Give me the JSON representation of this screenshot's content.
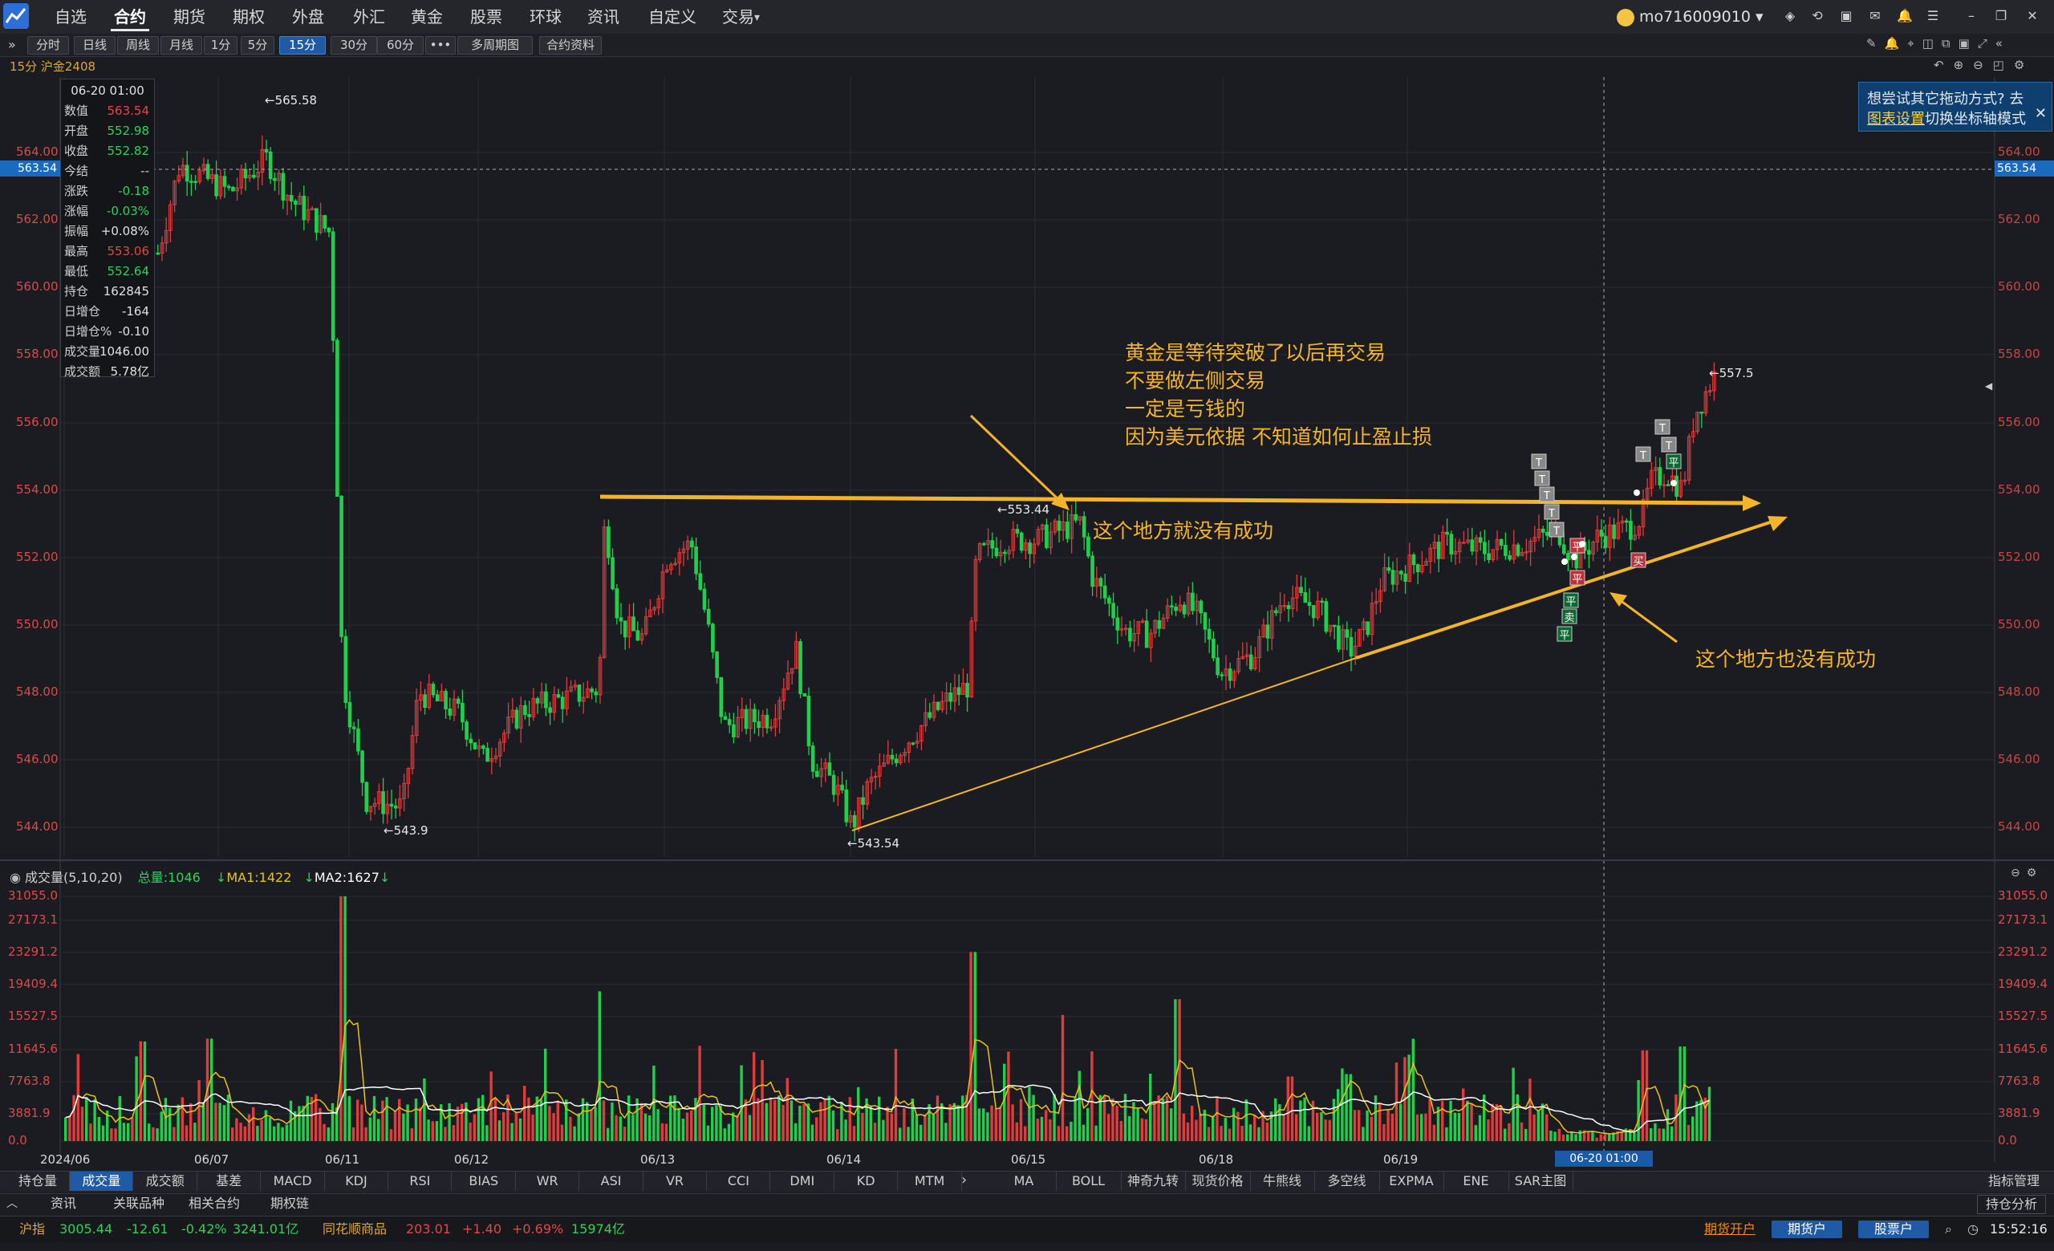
{
  "menu": {
    "items": [
      "自选",
      "合约",
      "期货",
      "期权",
      "外盘",
      "外汇",
      "黄金",
      "股票",
      "环球",
      "资讯",
      "自定义",
      "交易"
    ],
    "active_index": 1,
    "user": "mo716009010"
  },
  "periods": {
    "items": [
      "分时",
      "日线",
      "周线",
      "月线",
      "1分",
      "5分",
      "15分",
      "30分",
      "60分",
      "•••",
      "多周期图",
      "合约资料"
    ],
    "selected_index": 6
  },
  "subtitle": "15分 沪金2408",
  "price_axis": {
    "labels": [
      "564.00",
      "562.00",
      "560.00",
      "558.00",
      "556.00",
      "554.00",
      "552.00",
      "550.00",
      "548.00",
      "546.00",
      "544.00"
    ],
    "current": "563.54"
  },
  "date_axis": [
    "2024/06",
    "06/07",
    "06/11",
    "06/12",
    "06/13",
    "06/14",
    "06/15",
    "06/18",
    "06/19"
  ],
  "cursor_date": "06-20 01:00",
  "markers": {
    "high": "←565.58",
    "low1": "←543.9",
    "low2": "←543.54",
    "mid": "←553.44",
    "last": "←557.5"
  },
  "info_panel": {
    "time": "06-20 01:00",
    "rows": [
      {
        "k": "数值",
        "v": "563.54",
        "c": "#e04848"
      },
      {
        "k": "开盘",
        "v": "552.98",
        "c": "#2fd15a"
      },
      {
        "k": "收盘",
        "v": "552.82",
        "c": "#2fd15a"
      },
      {
        "k": "今结",
        "v": "--",
        "c": "#c8c8c8"
      },
      {
        "k": "涨跌",
        "v": "-0.18",
        "c": "#2fd15a"
      },
      {
        "k": "涨幅",
        "v": "-0.03%",
        "c": "#2fd15a"
      },
      {
        "k": "振幅",
        "v": "+0.08%",
        "c": "#e0e0e0"
      },
      {
        "k": "最高",
        "v": "553.06",
        "c": "#e04848"
      },
      {
        "k": "最低",
        "v": "552.64",
        "c": "#2fd15a"
      },
      {
        "k": "持仓",
        "v": "162845",
        "c": "#e0e0e0"
      },
      {
        "k": "日增仓",
        "v": "-164",
        "c": "#e0e0e0"
      },
      {
        "k": "日增仓%",
        "v": "-0.10",
        "c": "#e0e0e0"
      },
      {
        "k": "成交量",
        "v": "1046.00",
        "c": "#e0e0e0"
      },
      {
        "k": "成交额",
        "v": "5.78亿",
        "c": "#e0e0e0"
      }
    ]
  },
  "annotations": {
    "note_line1": "黄金是等待突破了以后再交易",
    "note_line2": "不要做左侧交易",
    "note_line3": "一定是亏钱的",
    "note_line4": "因为美元依据 不知道如何止盈止损",
    "fail1": "这个地方就没有成功",
    "fail2": "这个地方也没有成功"
  },
  "hint": {
    "line1": "想尝试其它拖动方式? 去",
    "link": "图表设置",
    "line2_rest": "切换坐标轴模式"
  },
  "volume": {
    "title": "成交量(5,10,20)",
    "total": "总量:1046",
    "ma1": "MA1:1422",
    "ma2": "MA2:1627",
    "axis": [
      "31055.0",
      "27173.1",
      "23291.2",
      "19409.4",
      "15527.5",
      "11645.6",
      "7763.8",
      "3881.9",
      "0.0"
    ]
  },
  "indicator_tabs": [
    "持仓量",
    "成交量",
    "成交额",
    "基差",
    "MACD",
    "KDJ",
    "RSI",
    "BIAS",
    "WR",
    "ASI",
    "VR",
    "CCI",
    "DMI",
    "KD",
    "MTM"
  ],
  "indicator_tabs_selected": 1,
  "overlay_tabs": [
    "MA",
    "BOLL",
    "神奇九转",
    "现货价格",
    "牛熊线",
    "多空线",
    "EXPMA",
    "ENE",
    "SAR主图"
  ],
  "indicator_manage": "指标管理",
  "sub_tabs": [
    "资讯",
    "关联品种",
    "相关合约",
    "期权链"
  ],
  "position_analysis": "持仓分析",
  "status": {
    "idx1_name": "沪指",
    "idx1_val": "3005.44",
    "idx1_chg": "-12.61",
    "idx1_pct": "-0.42%",
    "idx1_amt": "3241.01亿",
    "idx2_name": "同花顺商品",
    "idx2_val": "203.01",
    "idx2_chg": "+1.40",
    "idx2_pct": "+0.69%",
    "idx2_amt": "15974亿",
    "open_futures": "期货开户",
    "futures_acct": "期货户",
    "stock_acct": "股票户",
    "clock": "15:52:16"
  },
  "colors": {
    "up": "#e03c3c",
    "down": "#20d04c",
    "accent": "#f3b42a",
    "ma1": "#ffffff",
    "ma2": "#e8c21c"
  }
}
